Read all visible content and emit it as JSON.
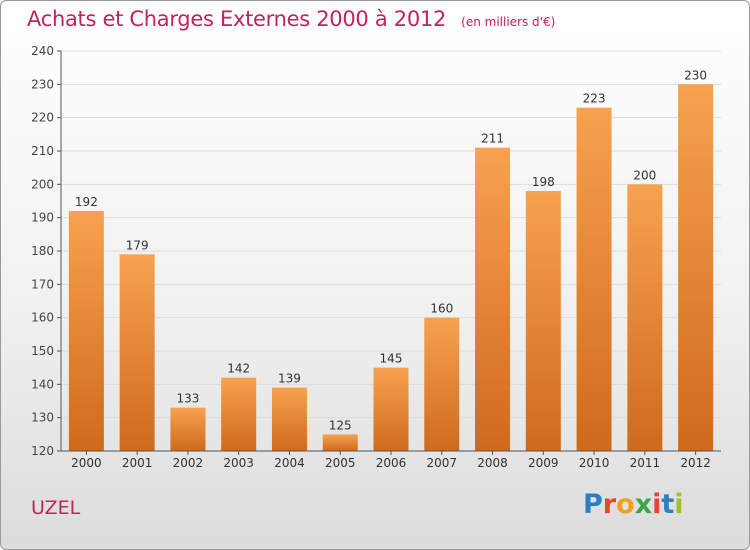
{
  "header": {
    "title": "Achats et Charges Externes 2000 à 2012",
    "subtitle": "(en milliers d'€)"
  },
  "footer": {
    "place": "UZEL",
    "logo_letters": [
      "P",
      "r",
      "o",
      "x",
      "i",
      "t",
      "i"
    ],
    "logo_colors": [
      "#2b7fc1",
      "#e8452c",
      "#f0a020",
      "#3aa648",
      "#e8452c",
      "#2b7fc1",
      "#a0c030"
    ]
  },
  "chart_data": {
    "type": "bar",
    "title": "Achats et Charges Externes 2000 à 2012",
    "categories": [
      "2000",
      "2001",
      "2002",
      "2003",
      "2004",
      "2005",
      "2006",
      "2007",
      "2008",
      "2009",
      "2010",
      "2011",
      "2012"
    ],
    "values": [
      192,
      179,
      133,
      142,
      139,
      125,
      145,
      160,
      211,
      198,
      223,
      200,
      230
    ],
    "ylim": [
      120,
      240
    ],
    "yticks": [
      120,
      130,
      140,
      150,
      160,
      170,
      180,
      190,
      200,
      210,
      220,
      230,
      240
    ],
    "grid": true,
    "bar_color_top": "#f7a24f",
    "bar_color_bottom": "#cf6a1c"
  }
}
